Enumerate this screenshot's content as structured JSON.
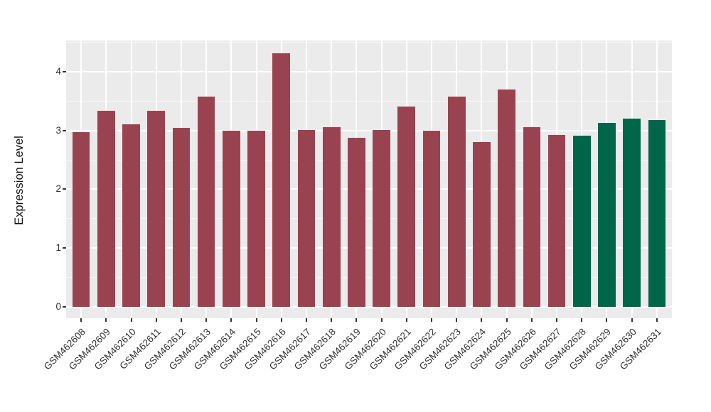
{
  "chart_data": {
    "type": "bar",
    "title": "",
    "xlabel": "",
    "ylabel": "Expression Level",
    "categories": [
      "GSM462608",
      "GSM462609",
      "GSM462610",
      "GSM462611",
      "GSM462612",
      "GSM462613",
      "GSM462614",
      "GSM462615",
      "GSM462616",
      "GSM462617",
      "GSM462618",
      "GSM462619",
      "GSM462620",
      "GSM462621",
      "GSM462622",
      "GSM462623",
      "GSM462624",
      "GSM462625",
      "GSM462626",
      "GSM462627",
      "GSM462628",
      "GSM462629",
      "GSM462630",
      "GSM462631"
    ],
    "values": [
      2.97,
      3.33,
      3.11,
      3.33,
      3.04,
      3.57,
      2.99,
      3.0,
      4.31,
      3.01,
      3.05,
      2.88,
      3.01,
      3.41,
      3.0,
      3.57,
      2.8,
      3.69,
      3.05,
      2.92,
      2.91,
      3.13,
      3.2,
      3.18
    ],
    "bar_colors": [
      "#9A4350",
      "#9A4350",
      "#9A4350",
      "#9A4350",
      "#9A4350",
      "#9A4350",
      "#9A4350",
      "#9A4350",
      "#9A4350",
      "#9A4350",
      "#9A4350",
      "#9A4350",
      "#9A4350",
      "#9A4350",
      "#9A4350",
      "#9A4350",
      "#9A4350",
      "#9A4350",
      "#9A4350",
      "#9A4350",
      "#006649",
      "#006649",
      "#006649",
      "#006649"
    ],
    "group_colors": {
      "red_group": "#9A4350",
      "green_group": "#006649"
    },
    "ylim": [
      0,
      4.52
    ],
    "yticks": [
      0,
      1,
      2,
      3,
      4
    ],
    "yticks_minor": [
      0.5,
      1.5,
      2.5,
      3.5,
      4.5
    ],
    "grid": "major-and-minor",
    "legend_position": "none",
    "panel_background": "#EBEBEB",
    "grid_color": "#FFFFFF"
  }
}
